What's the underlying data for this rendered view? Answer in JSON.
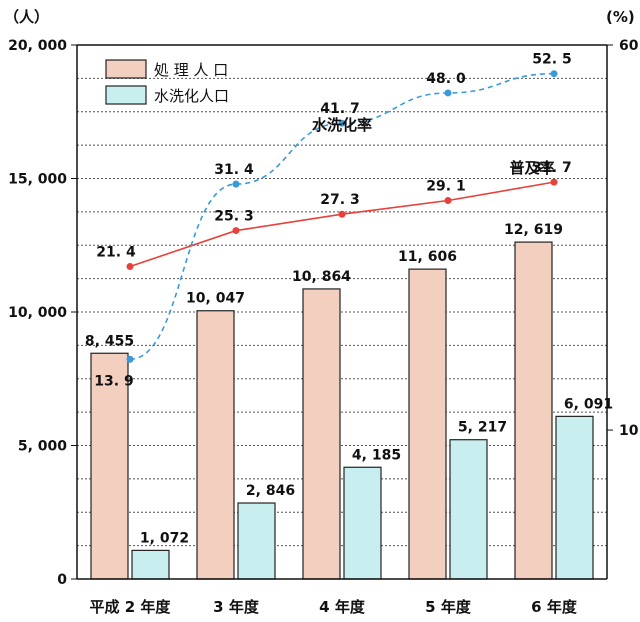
{
  "chart_data": {
    "type": "bar",
    "units": {
      "left": "（人）",
      "right": "(%)"
    },
    "categories": [
      "平成 2 年度",
      "3 年度",
      "4 年度",
      "5 年度",
      "6 年度"
    ],
    "y_left": {
      "ylim": [
        0,
        20000
      ],
      "ticks": [
        0,
        5000,
        10000,
        15000,
        20000
      ],
      "tick_labels": [
        "0",
        "5, 000",
        "10, 000",
        "15, 000",
        "20, 000"
      ]
    },
    "y_right": {
      "scale": "log",
      "ylim": [
        5,
        60
      ],
      "ticks": [
        10,
        60
      ],
      "tick_labels": [
        "10",
        "60"
      ]
    },
    "grid": true,
    "legend_position": "top-left",
    "series": [
      {
        "name": "処 理 人 口",
        "kind": "bar",
        "axis": "left",
        "color": "#f3cfbf",
        "values": [
          8455,
          10047,
          10864,
          11606,
          12619
        ],
        "labels": [
          "8, 455",
          "10, 047",
          "10, 864",
          "11, 606",
          "12, 619"
        ]
      },
      {
        "name": "水洗化人口",
        "kind": "bar",
        "axis": "left",
        "color": "#c9eef0",
        "values": [
          1072,
          2846,
          4185,
          5217,
          6091
        ],
        "labels": [
          "1, 072",
          "2, 846",
          "4, 185",
          "5, 217",
          "6, 091"
        ]
      },
      {
        "name": "普及率",
        "kind": "line",
        "axis": "right",
        "color": "#e8403a",
        "style": "solid",
        "values": [
          21.4,
          25.3,
          27.3,
          29.1,
          31.7
        ],
        "labels": [
          "21. 4",
          "25. 3",
          "27. 3",
          "29. 1",
          "31. 7"
        ]
      },
      {
        "name": "水洗化率",
        "kind": "line",
        "axis": "right",
        "color": "#3a9ad9",
        "style": "dashed",
        "values": [
          13.9,
          31.4,
          41.7,
          48.0,
          52.5
        ],
        "labels": [
          "13. 9",
          "31. 4",
          "41. 7",
          "48. 0",
          "52. 5"
        ]
      }
    ]
  }
}
